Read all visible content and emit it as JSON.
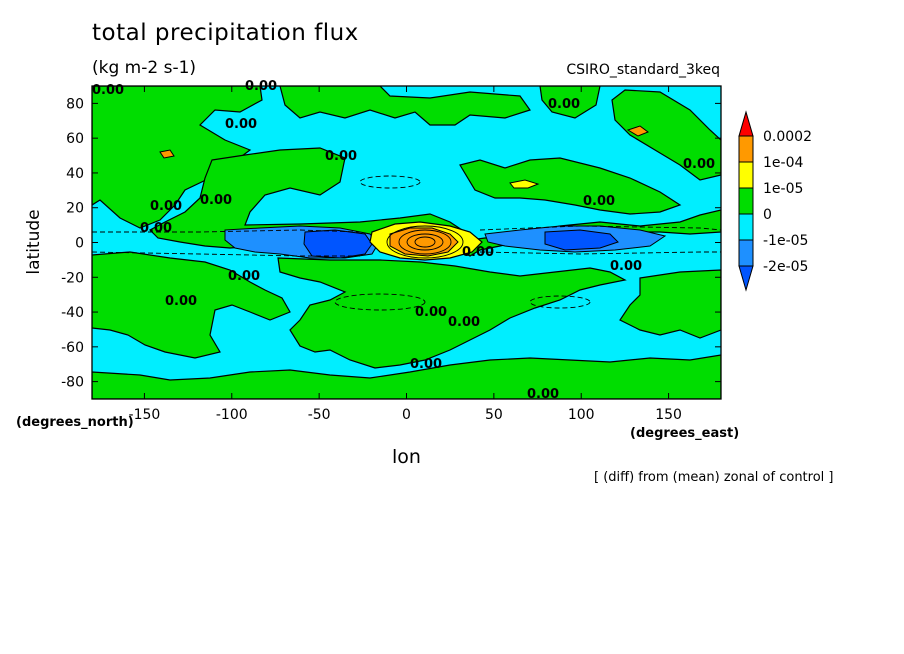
{
  "chart_data": {
    "type": "heatmap",
    "title": "total precipitation flux",
    "units": "(kg m-2 s-1)",
    "run_label": "CSIRO_standard_3keq",
    "xlabel": "lon",
    "ylabel": "latitude",
    "x_units": "(degrees_east)",
    "y_units": "(degrees_north)",
    "note": "[ (diff) from (mean) zonal of control ]",
    "xlim": [
      -180,
      180
    ],
    "ylim": [
      -90,
      90
    ],
    "x_ticks": [
      -150,
      -100,
      -50,
      0,
      50,
      100,
      150
    ],
    "y_ticks": [
      80,
      60,
      40,
      20,
      0,
      -20,
      -40,
      -60,
      -80
    ],
    "colorbar": {
      "levels": [
        "0.0002",
        "1e-04",
        "1e-05",
        "0",
        "-1e-05",
        "-2e-05"
      ],
      "colors": [
        "#ff0000",
        "#ff9900",
        "#ffff00",
        "#00dd00",
        "#00eeff",
        "#1e90ff",
        "#0055ff"
      ]
    },
    "contour_labels": [
      "0.00",
      "0.00",
      "0.00",
      "0.00",
      "0.00",
      "0.00",
      "0.00",
      "0.00",
      "0.00",
      "0.00",
      "0.00",
      "0.00",
      "0.00",
      "0.00",
      "0.00",
      "0.00",
      "0.00",
      "0.00"
    ]
  }
}
